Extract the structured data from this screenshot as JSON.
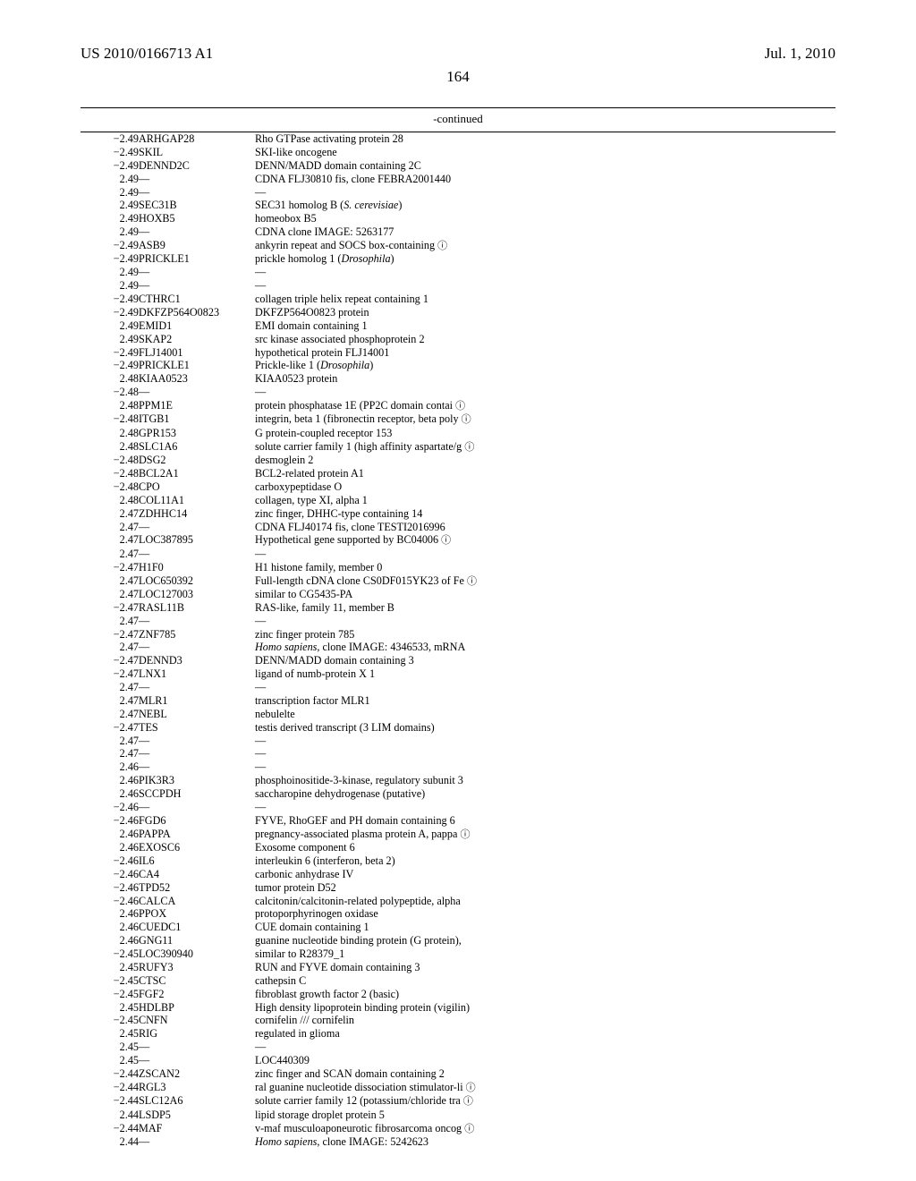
{
  "header": {
    "left": "US 2010/0166713 A1",
    "right": "Jul. 1, 2010"
  },
  "page_number": "164",
  "continued_label": "-continued",
  "circled_glyph": "ⓘ",
  "rows": [
    {
      "v": "−2.49",
      "g": "ARHGAP28",
      "d": "Rho GTPase activating protein 28"
    },
    {
      "v": "−2.49",
      "g": "SKIL",
      "d": "SKI-like oncogene"
    },
    {
      "v": "−2.49",
      "g": "DENND2C",
      "d": "DENN/MADD domain containing 2C"
    },
    {
      "v": "2.49",
      "g": "—",
      "d": "CDNA FLJ30810 fis, clone FEBRA2001440"
    },
    {
      "v": "2.49",
      "g": "—",
      "d": "—"
    },
    {
      "v": "2.49",
      "g": "SEC31B",
      "d": "SEC31 homolog B (",
      "it": "S. cerevisiae",
      "d2": ")"
    },
    {
      "v": "2.49",
      "g": "HOXB5",
      "d": "homeobox B5"
    },
    {
      "v": "2.49",
      "g": "—",
      "d": "CDNA clone IMAGE: 5263177"
    },
    {
      "v": "−2.49",
      "g": "ASB9",
      "d": "ankyrin repeat and SOCS box-containing ",
      "ic": true
    },
    {
      "v": "−2.49",
      "g": "PRICKLE1",
      "d": "prickle homolog 1 (",
      "it": "Drosophila",
      "d2": ")"
    },
    {
      "v": "2.49",
      "g": "—",
      "d": "—"
    },
    {
      "v": "2.49",
      "g": "—",
      "d": "—"
    },
    {
      "v": "−2.49",
      "g": "CTHRC1",
      "d": "collagen triple helix repeat containing 1"
    },
    {
      "v": "−2.49",
      "g": "DKFZP564O0823",
      "d": "DKFZP564O0823 protein"
    },
    {
      "v": "2.49",
      "g": "EMID1",
      "d": "EMI domain containing 1"
    },
    {
      "v": "2.49",
      "g": "SKAP2",
      "d": "src kinase associated phosphoprotein 2"
    },
    {
      "v": "−2.49",
      "g": "FLJ14001",
      "d": "hypothetical protein FLJ14001"
    },
    {
      "v": "−2.49",
      "g": "PRICKLE1",
      "d": "Prickle-like 1 (",
      "it": "Drosophila",
      "d2": ")"
    },
    {
      "v": "2.48",
      "g": "KIAA0523",
      "d": "KIAA0523 protein"
    },
    {
      "v": "−2.48",
      "g": "—",
      "d": "—"
    },
    {
      "v": "2.48",
      "g": "PPM1E",
      "d": "protein phosphatase 1E (PP2C domain contai ",
      "ic": true
    },
    {
      "v": "−2.48",
      "g": "ITGB1",
      "d": "integrin, beta 1 (fibronectin receptor, beta poly ",
      "ic": true
    },
    {
      "v": "2.48",
      "g": "GPR153",
      "d": "G protein-coupled receptor 153"
    },
    {
      "v": "2.48",
      "g": "SLC1A6",
      "d": "solute carrier family 1 (high affinity aspartate/g ",
      "ic": true
    },
    {
      "v": "−2.48",
      "g": "DSG2",
      "d": "desmoglein 2"
    },
    {
      "v": "−2.48",
      "g": "BCL2A1",
      "d": "BCL2-related protein A1"
    },
    {
      "v": "−2.48",
      "g": "CPO",
      "d": "carboxypeptidase O"
    },
    {
      "v": "2.48",
      "g": "COL11A1",
      "d": "collagen, type XI, alpha 1"
    },
    {
      "v": "2.47",
      "g": "ZDHHC14",
      "d": "zinc finger, DHHC-type containing 14"
    },
    {
      "v": "2.47",
      "g": "—",
      "d": "CDNA FLJ40174 fis, clone TESTI2016996"
    },
    {
      "v": "2.47",
      "g": "LOC387895",
      "d": "Hypothetical gene supported by BC04006 ",
      "ic": true
    },
    {
      "v": "2.47",
      "g": "—",
      "d": "—"
    },
    {
      "v": "−2.47",
      "g": "H1F0",
      "d": "H1 histone family, member 0"
    },
    {
      "v": "2.47",
      "g": "LOC650392",
      "d": "Full-length cDNA clone CS0DF015YK23 of Fe ",
      "ic": true
    },
    {
      "v": "2.47",
      "g": "LOC127003",
      "d": "similar to CG5435-PA"
    },
    {
      "v": "−2.47",
      "g": "RASL11B",
      "d": "RAS-like, family 11, member B"
    },
    {
      "v": "2.47",
      "g": "—",
      "d": "—"
    },
    {
      "v": "−2.47",
      "g": "ZNF785",
      "d": "zinc finger protein 785"
    },
    {
      "v": "2.47",
      "g": "—",
      "it": "Homo sapiens",
      "d2": ", clone IMAGE: 4346533, mRNA"
    },
    {
      "v": "−2.47",
      "g": "DENND3",
      "d": "DENN/MADD domain containing 3"
    },
    {
      "v": "−2.47",
      "g": "LNX1",
      "d": "ligand of numb-protein X 1"
    },
    {
      "v": "2.47",
      "g": "—",
      "d": "—"
    },
    {
      "v": "2.47",
      "g": "MLR1",
      "d": "transcription factor MLR1"
    },
    {
      "v": "2.47",
      "g": "NEBL",
      "d": "nebulelte"
    },
    {
      "v": "−2.47",
      "g": "TES",
      "d": "testis derived transcript (3 LIM domains)"
    },
    {
      "v": "2.47",
      "g": "—",
      "d": "—"
    },
    {
      "v": "2.47",
      "g": "—",
      "d": "—"
    },
    {
      "v": "2.46",
      "g": "—",
      "d": "—"
    },
    {
      "v": "2.46",
      "g": "PIK3R3",
      "d": "phosphoinositide-3-kinase, regulatory subunit 3"
    },
    {
      "v": "2.46",
      "g": "SCCPDH",
      "d": "saccharopine dehydrogenase (putative)"
    },
    {
      "v": "−2.46",
      "g": "—",
      "d": "—"
    },
    {
      "v": "−2.46",
      "g": "FGD6",
      "d": "FYVE, RhoGEF and PH domain containing 6"
    },
    {
      "v": "2.46",
      "g": "PAPPA",
      "d": "pregnancy-associated plasma protein A, pappa ",
      "ic": true
    },
    {
      "v": "2.46",
      "g": "EXOSC6",
      "d": "Exosome component 6"
    },
    {
      "v": "−2.46",
      "g": "IL6",
      "d": "interleukin 6 (interferon, beta 2)"
    },
    {
      "v": "−2.46",
      "g": "CA4",
      "d": "carbonic anhydrase IV"
    },
    {
      "v": "−2.46",
      "g": "TPD52",
      "d": "tumor protein D52"
    },
    {
      "v": "−2.46",
      "g": "CALCA",
      "d": "calcitonin/calcitonin-related polypeptide, alpha"
    },
    {
      "v": "2.46",
      "g": "PPOX",
      "d": "protoporphyrinogen oxidase"
    },
    {
      "v": "2.46",
      "g": "CUEDC1",
      "d": "CUE domain containing 1"
    },
    {
      "v": "2.46",
      "g": "GNG11",
      "d": "guanine nucleotide binding protein (G protein),"
    },
    {
      "v": "−2.45",
      "g": "LOC390940",
      "d": "similar to R28379_1"
    },
    {
      "v": "2.45",
      "g": "RUFY3",
      "d": "RUN and FYVE domain containing 3"
    },
    {
      "v": "−2.45",
      "g": "CTSC",
      "d": "cathepsin C"
    },
    {
      "v": "−2.45",
      "g": "FGF2",
      "d": "fibroblast growth factor 2 (basic)"
    },
    {
      "v": "2.45",
      "g": "HDLBP",
      "d": "High density lipoprotein binding protein (vigilin)"
    },
    {
      "v": "−2.45",
      "g": "CNFN",
      "d": "cornifelin /// cornifelin"
    },
    {
      "v": "2.45",
      "g": "RIG",
      "d": "regulated in glioma"
    },
    {
      "v": "2.45",
      "g": "—",
      "d": "—"
    },
    {
      "v": "2.45",
      "g": "—",
      "d": "LOC440309"
    },
    {
      "v": "−2.44",
      "g": "ZSCAN2",
      "d": "zinc finger and SCAN domain containing 2"
    },
    {
      "v": "−2.44",
      "g": "RGL3",
      "d": "ral guanine nucleotide dissociation stimulator-li ",
      "ic": true
    },
    {
      "v": "−2.44",
      "g": "SLC12A6",
      "d": "solute carrier family 12 (potassium/chloride tra ",
      "ic": true
    },
    {
      "v": "2.44",
      "g": "LSDP5",
      "d": "lipid storage droplet protein 5"
    },
    {
      "v": "−2.44",
      "g": "MAF",
      "d": "v-maf musculoaponeurotic fibrosarcoma oncog ",
      "ic": true
    },
    {
      "v": "2.44",
      "g": "—",
      "it": "Homo sapiens",
      "d2": ", clone IMAGE: 5242623"
    }
  ]
}
